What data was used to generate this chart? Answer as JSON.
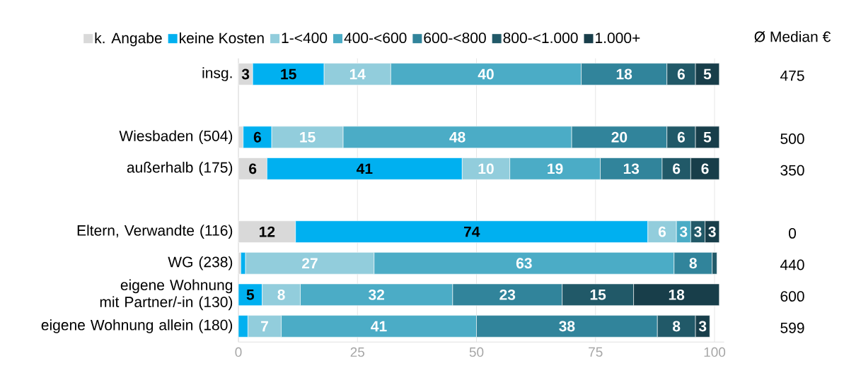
{
  "chart_data": {
    "type": "bar",
    "orientation": "horizontal",
    "stacked": true,
    "categories": [
      "insg.",
      null,
      "Wiesbaden (504)",
      "außerhalb (175)",
      null,
      "Eltern, Verwandte (116)",
      "WG (238)",
      "eigene Wohnung mit Partner/-in (130)",
      "eigene Wohnung allein (180)"
    ],
    "series": [
      {
        "name": "k. Angabe",
        "color": "#d9d9d9",
        "values": [
          3,
          null,
          1,
          6,
          null,
          12,
          0.5,
          0,
          0
        ],
        "value_labels": [
          "3",
          null,
          null,
          "6",
          null,
          "12",
          null,
          null,
          null
        ]
      },
      {
        "name": "keine Kosten",
        "color": "#00b0f0",
        "values": [
          15,
          null,
          6,
          41,
          null,
          74,
          1,
          5,
          2
        ],
        "value_labels": [
          "15",
          null,
          "6",
          "41",
          null,
          "74",
          null,
          "5",
          null
        ]
      },
      {
        "name": "1-<400",
        "color": "#92cddc",
        "values": [
          14,
          null,
          15,
          10,
          null,
          6,
          27,
          8,
          7
        ],
        "value_labels": [
          "14",
          null,
          "15",
          "10",
          null,
          "6",
          "27",
          "8",
          "7"
        ]
      },
      {
        "name": "400-<600",
        "color": "#4bacc6",
        "values": [
          40,
          null,
          48,
          19,
          null,
          3,
          63,
          32,
          41
        ],
        "value_labels": [
          "40",
          null,
          "48",
          "19",
          null,
          "3",
          "63",
          "32",
          "41"
        ]
      },
      {
        "name": "600-<800",
        "color": "#31849b",
        "values": [
          18,
          null,
          20,
          13,
          null,
          0,
          8,
          23,
          38
        ],
        "value_labels": [
          "18",
          null,
          "20",
          "13",
          null,
          null,
          "8",
          "23",
          "38"
        ]
      },
      {
        "name": "800-<1.000",
        "color": "#215968",
        "values": [
          6,
          null,
          6,
          6,
          null,
          3,
          1,
          15,
          8
        ],
        "value_labels": [
          "6",
          null,
          "6",
          "6",
          null,
          "3",
          null,
          "15",
          "8"
        ]
      },
      {
        "name": "1.000+",
        "color": "#183e4a",
        "values": [
          5,
          null,
          5,
          6,
          null,
          3,
          null,
          18,
          3
        ],
        "value_labels": [
          "5",
          null,
          "5",
          "6",
          null,
          "3",
          null,
          "18",
          "3"
        ]
      }
    ],
    "xlim": [
      0,
      102
    ],
    "xticks": [
      0,
      25,
      50,
      75,
      100
    ],
    "grid": "x",
    "legend": "top",
    "annotations": [
      "Ø Median €",
      "475",
      "500",
      "350",
      "0",
      "440",
      "600",
      "599"
    ]
  }
}
